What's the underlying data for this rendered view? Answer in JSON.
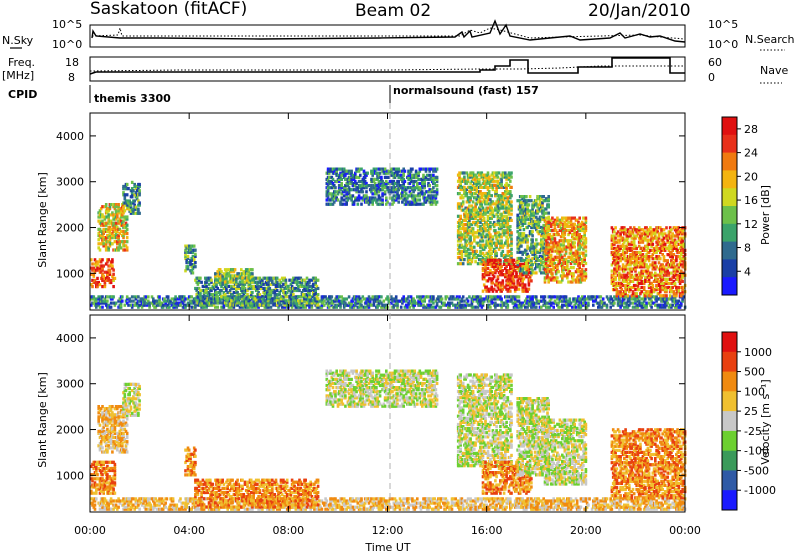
{
  "header": {
    "station": "Saskatoon (fitACF)",
    "beam": "Beam 02",
    "date": "20/Jan/2010"
  },
  "top_panels": {
    "nsky_label": "N.Sky",
    "nsearch_label": "N.Search",
    "nsky_ticks": [
      "10^5",
      "10^0"
    ],
    "nsearch_ticks": [
      "10^5",
      "10^0"
    ],
    "freq_label": "Freq.",
    "freq_unit": "[MHz]",
    "freq_ticks": [
      "18",
      "8"
    ],
    "nave_label": "Nave",
    "nave_ticks": [
      "60",
      "0"
    ],
    "cpid_label": "CPID",
    "cpid_segments": [
      {
        "label": "themis 3300"
      },
      {
        "label": "normalsound (fast) 157"
      }
    ]
  },
  "colors": {
    "grid_line": "#b0b0b0",
    "axis": "#000000"
  },
  "chart_data": [
    {
      "type": "heatmap",
      "name": "power",
      "ylabel": "Slant Range [km]",
      "ylim": [
        200,
        4500
      ],
      "yticks": [
        "4000",
        "3000",
        "2000",
        "1000"
      ],
      "yticks_values": [
        4000,
        3000,
        2000,
        1000
      ],
      "x_range_hours": [
        0,
        24
      ],
      "colorbar": {
        "label": "Power [dB]",
        "ticks": [
          "28",
          "24",
          "20",
          "16",
          "12",
          "8",
          "4"
        ],
        "tick_values": [
          28,
          24,
          20,
          16,
          12,
          8,
          4
        ],
        "range": [
          0,
          30
        ],
        "colors": [
          "#1a1aff",
          "#1a3fa6",
          "#2f6a8e",
          "#3aa36a",
          "#6cc04a",
          "#cfd820",
          "#f4b410",
          "#f07a10",
          "#e8301a",
          "#e01010"
        ]
      },
      "regions": [
        {
          "t": [
            0.0,
            1.0
          ],
          "r": [
            700,
            1300
          ],
          "v": 24
        },
        {
          "t": [
            0.3,
            1.5
          ],
          "r": [
            1500,
            2500
          ],
          "v": 18
        },
        {
          "t": [
            1.3,
            2.0
          ],
          "r": [
            2300,
            3000
          ],
          "v": 10
        },
        {
          "t": [
            0.0,
            24.0
          ],
          "r": [
            250,
            500
          ],
          "v": 8
        },
        {
          "t": [
            4.2,
            9.2
          ],
          "r": [
            300,
            900
          ],
          "v": 10
        },
        {
          "t": [
            5.0,
            6.5
          ],
          "r": [
            800,
            1100
          ],
          "v": 14
        },
        {
          "t": [
            9.5,
            14.0
          ],
          "r": [
            2500,
            3300
          ],
          "v": 8
        },
        {
          "t": [
            14.8,
            17.0
          ],
          "r": [
            1200,
            3200
          ],
          "v": 15
        },
        {
          "t": [
            15.8,
            17.8
          ],
          "r": [
            600,
            1300
          ],
          "v": 26
        },
        {
          "t": [
            17.2,
            18.5
          ],
          "r": [
            1000,
            2700
          ],
          "v": 12
        },
        {
          "t": [
            18.3,
            20.0
          ],
          "r": [
            800,
            2200
          ],
          "v": 20
        },
        {
          "t": [
            21.0,
            24.0
          ],
          "r": [
            500,
            2000
          ],
          "v": 22
        },
        {
          "t": [
            3.8,
            4.2
          ],
          "r": [
            1000,
            1600
          ],
          "v": 10
        }
      ]
    },
    {
      "type": "heatmap",
      "name": "velocity",
      "ylabel": "Slant Range [km]",
      "xlabel": "Time UT",
      "ylim": [
        200,
        4500
      ],
      "yticks": [
        "4000",
        "3000",
        "2000",
        "1000"
      ],
      "yticks_values": [
        4000,
        3000,
        2000,
        1000
      ],
      "x_range_hours": [
        0,
        24
      ],
      "xticks": [
        "00:00",
        "04:00",
        "08:00",
        "12:00",
        "16:00",
        "20:00",
        "00:00"
      ],
      "colorbar": {
        "label": "Velocity [m s⁻¹]",
        "ticks": [
          "1000",
          "500",
          "100",
          "25",
          "-25",
          "-100",
          "-500",
          "-1000"
        ],
        "colors": [
          "#1a1aff",
          "#2f5aa6",
          "#3a9a5a",
          "#6cd030",
          "#c8c8c8",
          "#f0c030",
          "#f08a10",
          "#e84010",
          "#e01010"
        ]
      },
      "regions": [
        {
          "t": [
            0.0,
            1.0
          ],
          "r": [
            600,
            1300
          ],
          "c": 6
        },
        {
          "t": [
            0.3,
            1.5
          ],
          "r": [
            1500,
            2500
          ],
          "c": 5
        },
        {
          "t": [
            1.3,
            2.0
          ],
          "r": [
            2300,
            3000
          ],
          "c": 4
        },
        {
          "t": [
            0.0,
            24.0
          ],
          "r": [
            250,
            500
          ],
          "c": 5
        },
        {
          "t": [
            4.2,
            9.2
          ],
          "r": [
            300,
            900
          ],
          "c": 6
        },
        {
          "t": [
            9.5,
            14.0
          ],
          "r": [
            2500,
            3300
          ],
          "c": 4
        },
        {
          "t": [
            14.8,
            17.0
          ],
          "r": [
            1200,
            3200
          ],
          "c": 4
        },
        {
          "t": [
            15.8,
            17.8
          ],
          "r": [
            600,
            1300
          ],
          "c": 6
        },
        {
          "t": [
            17.2,
            18.5
          ],
          "r": [
            1000,
            2700
          ],
          "c": 4
        },
        {
          "t": [
            18.3,
            20.0
          ],
          "r": [
            800,
            2200
          ],
          "c": 4
        },
        {
          "t": [
            21.0,
            24.0
          ],
          "r": [
            500,
            2000
          ],
          "c": 6
        },
        {
          "t": [
            3.8,
            4.2
          ],
          "r": [
            1000,
            1600
          ],
          "c": 6
        }
      ]
    }
  ]
}
